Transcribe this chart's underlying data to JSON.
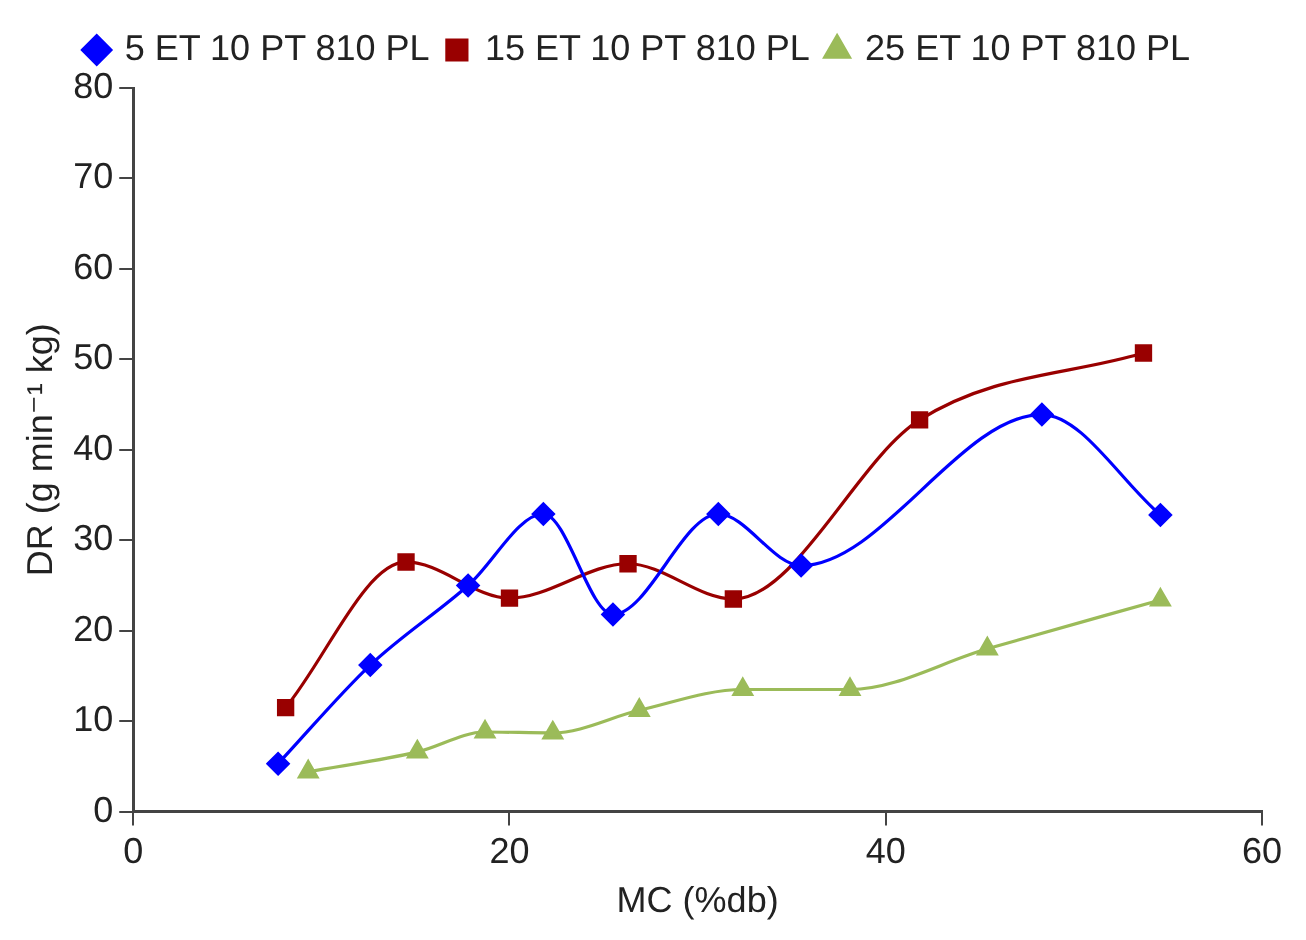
{
  "chart_data": {
    "type": "line",
    "xlabel": "MC (%db)",
    "ylabel": "DR (g min⁻¹ kg)",
    "xlim": [
      0,
      60
    ],
    "xticks": [
      0,
      20,
      40,
      60
    ],
    "ylim": [
      0,
      80
    ],
    "yticks": [
      0,
      10,
      20,
      30,
      40,
      50,
      60,
      70,
      80
    ],
    "grid": false,
    "legend": "top",
    "series": [
      {
        "name": "5 ET 10 PT 810 PL",
        "color": "#0000ff",
        "marker": "diamond",
        "x": [
          7.7,
          12.6,
          17.8,
          21.8,
          25.5,
          31.1,
          35.5,
          48.3,
          54.6
        ],
        "values": [
          5.3,
          16.2,
          25,
          32.9,
          21.8,
          32.9,
          27.2,
          43.9,
          32.8
        ]
      },
      {
        "name": "15 ET 10 PT 810 PL",
        "color": "#990000",
        "marker": "square",
        "x": [
          8.1,
          14.5,
          20,
          26.3,
          31.9,
          41.8,
          53.7
        ],
        "values": [
          11.5,
          27.6,
          23.6,
          27.4,
          23.5,
          43.3,
          50.7
        ]
      },
      {
        "name": "25 ET 10 PT 810 PL",
        "color": "#9bbb59",
        "marker": "triangle",
        "x": [
          9.3,
          15.1,
          18.7,
          22.3,
          26.9,
          32.4,
          38.1,
          45.4,
          54.6
        ],
        "values": [
          4.4,
          6.6,
          8.8,
          8.7,
          11.2,
          13.5,
          13.5,
          18,
          23.4
        ]
      }
    ]
  }
}
